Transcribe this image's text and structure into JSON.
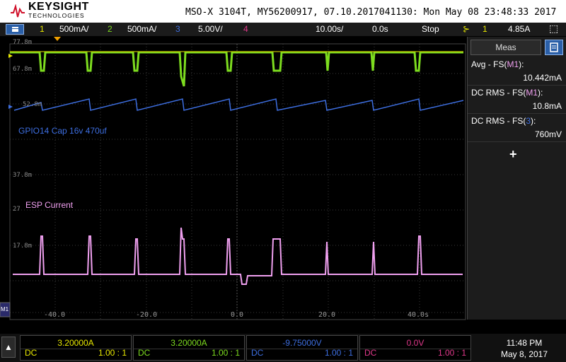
{
  "header": {
    "brand": "KEYSIGHT",
    "brand_sub": "TECHNOLOGIES",
    "model_info": "MSO-X 3104T, MY56200917, 07.10.2017041130: Mon May 08 23:48:33 2017"
  },
  "status": {
    "ch1_num": "1",
    "ch1_scale": "500mA/",
    "ch2_num": "2",
    "ch2_scale": "500mA/",
    "ch3_num": "3",
    "ch3_scale": "5.00V/",
    "ch4_num": "4",
    "timebase": "10.00s/",
    "delay": "0.0s",
    "run_state": "Stop",
    "trigger_ch": "1",
    "trigger_level": "4.85A"
  },
  "colors": {
    "ch1": "#e8e800",
    "ch2": "#7ddc1f",
    "ch3": "#3d6ee0",
    "ch4": "#e680e6",
    "math": "#f0a0f0"
  },
  "waveform_labels": {
    "gpio": "GPIO14 Cap 16v 470uf",
    "esp": "ESP Current",
    "y_ticks": [
      "77.8m",
      "67.8m",
      "52.8m",
      "37.8m",
      "27",
      "17.8m"
    ],
    "x_ticks": [
      "-40.0",
      "-20.0",
      "0.0",
      "20.0",
      "40.0s"
    ]
  },
  "measurements": {
    "tab_label": "Meas",
    "items": [
      {
        "prefix": "Avg - FS(",
        "src": "M1",
        "suffix": "):",
        "value": "10.442mA"
      },
      {
        "prefix": "DC RMS - FS(",
        "src": "M1",
        "suffix": "):",
        "value": "10.8mA"
      },
      {
        "prefix": "DC RMS - FS(",
        "src": "3",
        "suffix": "):",
        "value": "760mV"
      }
    ],
    "add_icon": "plus-icon"
  },
  "channels": [
    {
      "value": "3.20000A",
      "coupling": "DC",
      "ratio": "1.00 : 1",
      "color": "#e8e800"
    },
    {
      "value": "3.20000A",
      "coupling": "DC",
      "ratio": "1.00 : 1",
      "color": "#7ddc1f"
    },
    {
      "value": "-9.75000V",
      "coupling": "DC",
      "ratio": "1.00 : 1",
      "color": "#3d6ee0"
    },
    {
      "value": "0.0V",
      "coupling": "DC",
      "ratio": "1.00 : 1",
      "color": "#e0388a"
    }
  ],
  "clock": {
    "time": "11:48 PM",
    "date": "May 8, 2017"
  }
}
